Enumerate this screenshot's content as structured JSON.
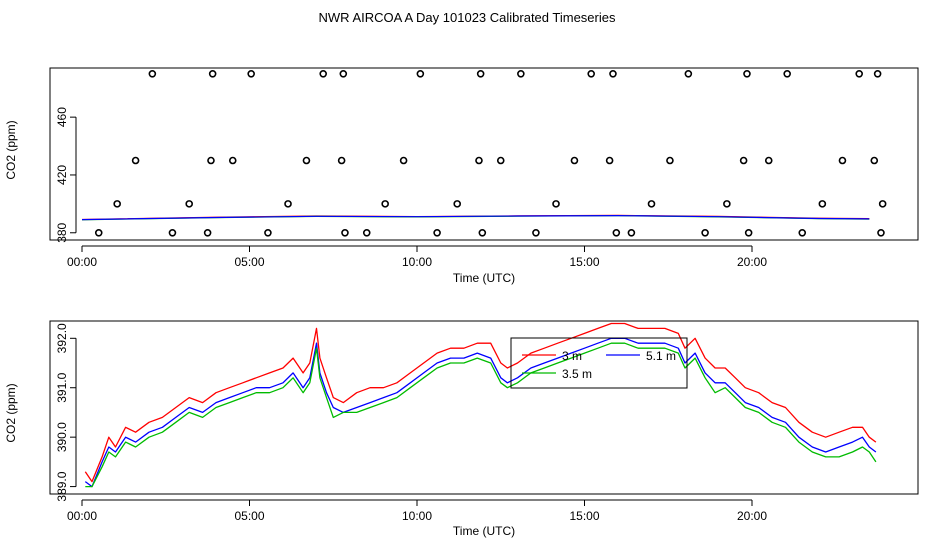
{
  "title": "NWR AIRCOA A  Day 101023  Calibrated Timeseries",
  "chart_data": [
    {
      "type": "scatter",
      "xlabel": "Time (UTC)",
      "ylabel": "CO2 (ppm)",
      "xlim": [
        0,
        24
      ],
      "ylim": [
        375,
        494
      ],
      "x_ticks": [
        0,
        5,
        10,
        15,
        20
      ],
      "x_tick_labels": [
        "00:00",
        "05:00",
        "10:00",
        "15:00",
        "20:00"
      ],
      "y_ticks": [
        380,
        420,
        460
      ],
      "y_tick_labels": [
        "380",
        "420",
        "460"
      ],
      "calibration_points": {
        "x": [
          0.5,
          1.05,
          1.6,
          2.1,
          2.7,
          3.2,
          3.75,
          3.85,
          3.9,
          4.5,
          5.05,
          5.55,
          6.15,
          6.7,
          7.2,
          7.75,
          7.8,
          7.85,
          8.5,
          9.05,
          9.6,
          10.1,
          10.6,
          11.2,
          11.85,
          11.9,
          11.95,
          12.5,
          13.1,
          13.55,
          14.15,
          14.7,
          15.2,
          15.75,
          15.85,
          15.95,
          16.4,
          17.0,
          17.55,
          18.1,
          18.6,
          19.25,
          19.75,
          19.85,
          19.9,
          20.5,
          21.05,
          21.5,
          22.1,
          22.7,
          23.2,
          23.65,
          23.75,
          23.85,
          23.9
        ],
        "y": [
          380,
          400,
          430,
          490,
          380,
          400,
          380,
          430,
          490,
          430,
          490,
          380,
          400,
          430,
          490,
          430,
          490,
          380,
          380,
          400,
          430,
          490,
          380,
          400,
          430,
          490,
          380,
          430,
          490,
          380,
          400,
          430,
          490,
          430,
          490,
          380,
          380,
          400,
          430,
          490,
          380,
          400,
          430,
          490,
          380,
          430,
          490,
          380,
          400,
          430,
          490,
          430,
          490,
          380,
          400
        ]
      },
      "series": [
        {
          "name": "3 m",
          "color": "#ff0000",
          "x": [
            0,
            4,
            7,
            10,
            13,
            16,
            19,
            22,
            23.5
          ],
          "values": [
            389.2,
            390.8,
            391.6,
            391.2,
            391.7,
            392.0,
            391.3,
            390.1,
            389.8
          ]
        },
        {
          "name": "3.5 m",
          "color": "#00bb00",
          "x": [
            0,
            4,
            7,
            10,
            13,
            16,
            19,
            22,
            23.5
          ],
          "values": [
            389.0,
            390.5,
            391.3,
            391.0,
            391.5,
            391.8,
            391.0,
            389.8,
            389.4
          ]
        },
        {
          "name": "5.1 m",
          "color": "#0000ff",
          "x": [
            0,
            4,
            7,
            10,
            13,
            16,
            19,
            22,
            23.5
          ],
          "values": [
            389.1,
            390.6,
            391.4,
            391.1,
            391.6,
            391.9,
            391.1,
            389.9,
            389.6
          ]
        }
      ]
    },
    {
      "type": "line",
      "xlabel": "Time (UTC)",
      "ylabel": "CO2 (ppm)",
      "xlim": [
        0,
        24
      ],
      "ylim": [
        388.85,
        392.35
      ],
      "x_ticks": [
        0,
        5,
        10,
        15,
        20
      ],
      "x_tick_labels": [
        "00:00",
        "05:00",
        "10:00",
        "15:00",
        "20:00"
      ],
      "y_ticks": [
        389.0,
        390.0,
        391.0,
        392.0
      ],
      "y_tick_labels": [
        "389.0",
        "390.0",
        "391.0",
        "392.0"
      ],
      "legend": {
        "position": "center",
        "entries": [
          "3 m",
          "5.1 m",
          "3.5 m"
        ]
      },
      "series": [
        {
          "name": "3 m",
          "color": "#ff0000",
          "x": [
            0.1,
            0.3,
            0.6,
            0.8,
            1.0,
            1.3,
            1.6,
            2.0,
            2.4,
            2.8,
            3.2,
            3.6,
            4.0,
            4.4,
            4.8,
            5.2,
            5.6,
            6.0,
            6.3,
            6.6,
            6.8,
            7.0,
            7.1,
            7.3,
            7.5,
            7.8,
            8.2,
            8.6,
            9.0,
            9.4,
            9.8,
            10.2,
            10.6,
            11.0,
            11.4,
            11.8,
            12.2,
            12.5,
            12.7,
            13.0,
            13.4,
            13.8,
            14.2,
            14.6,
            15.0,
            15.4,
            15.8,
            16.2,
            16.6,
            17.0,
            17.4,
            17.8,
            18.0,
            18.3,
            18.6,
            18.9,
            19.2,
            19.5,
            19.8,
            20.2,
            20.6,
            21.0,
            21.4,
            21.8,
            22.2,
            22.6,
            23.0,
            23.3,
            23.5,
            23.7
          ],
          "values": [
            389.3,
            389.1,
            389.6,
            390.0,
            389.8,
            390.2,
            390.1,
            390.3,
            390.4,
            390.6,
            390.8,
            390.7,
            390.9,
            391.0,
            391.1,
            391.2,
            391.3,
            391.4,
            391.6,
            391.3,
            391.5,
            392.2,
            391.6,
            391.2,
            390.8,
            390.7,
            390.9,
            391.0,
            391.0,
            391.1,
            391.3,
            391.5,
            391.7,
            391.8,
            391.8,
            391.9,
            391.9,
            391.5,
            391.4,
            391.5,
            391.7,
            391.8,
            391.9,
            392.0,
            392.1,
            392.2,
            392.3,
            392.3,
            392.2,
            392.2,
            392.2,
            392.1,
            391.8,
            392.0,
            391.6,
            391.4,
            391.4,
            391.2,
            391.0,
            390.9,
            390.7,
            390.6,
            390.3,
            390.1,
            390.0,
            390.1,
            390.2,
            390.2,
            390.0,
            389.9
          ]
        },
        {
          "name": "5.1 m",
          "color": "#0000ff",
          "x": [
            0.1,
            0.3,
            0.6,
            0.8,
            1.0,
            1.3,
            1.6,
            2.0,
            2.4,
            2.8,
            3.2,
            3.6,
            4.0,
            4.4,
            4.8,
            5.2,
            5.6,
            6.0,
            6.3,
            6.6,
            6.8,
            7.0,
            7.1,
            7.3,
            7.5,
            7.8,
            8.2,
            8.6,
            9.0,
            9.4,
            9.8,
            10.2,
            10.6,
            11.0,
            11.4,
            11.8,
            12.2,
            12.5,
            12.7,
            13.0,
            13.4,
            13.8,
            14.2,
            14.6,
            15.0,
            15.4,
            15.8,
            16.2,
            16.6,
            17.0,
            17.4,
            17.8,
            18.0,
            18.3,
            18.6,
            18.9,
            19.2,
            19.5,
            19.8,
            20.2,
            20.6,
            21.0,
            21.4,
            21.8,
            22.2,
            22.6,
            23.0,
            23.3,
            23.5,
            23.7
          ],
          "values": [
            389.1,
            389.0,
            389.5,
            389.8,
            389.7,
            390.0,
            389.9,
            390.1,
            390.2,
            390.4,
            390.6,
            390.5,
            390.7,
            390.8,
            390.9,
            391.0,
            391.0,
            391.1,
            391.3,
            391.0,
            391.2,
            391.9,
            391.3,
            390.9,
            390.6,
            390.5,
            390.6,
            390.7,
            390.8,
            390.9,
            391.1,
            391.3,
            391.5,
            391.6,
            391.6,
            391.7,
            391.6,
            391.2,
            391.1,
            391.2,
            391.4,
            391.5,
            391.6,
            391.7,
            391.8,
            391.9,
            392.0,
            392.0,
            391.9,
            391.9,
            391.9,
            391.8,
            391.5,
            391.7,
            391.3,
            391.1,
            391.1,
            390.9,
            390.7,
            390.6,
            390.4,
            390.3,
            390.0,
            389.8,
            389.7,
            389.8,
            389.9,
            390.0,
            389.8,
            389.7
          ]
        },
        {
          "name": "3.5 m",
          "color": "#00bb00",
          "x": [
            0.1,
            0.3,
            0.6,
            0.8,
            1.0,
            1.3,
            1.6,
            2.0,
            2.4,
            2.8,
            3.2,
            3.6,
            4.0,
            4.4,
            4.8,
            5.2,
            5.6,
            6.0,
            6.3,
            6.6,
            6.8,
            7.0,
            7.1,
            7.3,
            7.5,
            7.8,
            8.2,
            8.6,
            9.0,
            9.4,
            9.8,
            10.2,
            10.6,
            11.0,
            11.4,
            11.8,
            12.2,
            12.5,
            12.7,
            13.0,
            13.4,
            13.8,
            14.2,
            14.6,
            15.0,
            15.4,
            15.8,
            16.2,
            16.6,
            17.0,
            17.4,
            17.8,
            18.0,
            18.3,
            18.6,
            18.9,
            19.2,
            19.5,
            19.8,
            20.2,
            20.6,
            21.0,
            21.4,
            21.8,
            22.2,
            22.6,
            23.0,
            23.3,
            23.5,
            23.7
          ],
          "values": [
            389.0,
            389.0,
            389.4,
            389.7,
            389.6,
            389.9,
            389.8,
            390.0,
            390.1,
            390.3,
            390.5,
            390.4,
            390.6,
            390.7,
            390.8,
            390.9,
            390.9,
            391.0,
            391.2,
            390.9,
            391.1,
            391.8,
            391.2,
            390.8,
            390.4,
            390.5,
            390.5,
            390.6,
            390.7,
            390.8,
            391.0,
            391.2,
            391.4,
            391.5,
            391.5,
            391.6,
            391.5,
            391.1,
            391.0,
            391.1,
            391.3,
            391.4,
            391.5,
            391.6,
            391.7,
            391.8,
            391.9,
            391.9,
            391.8,
            391.8,
            391.8,
            391.7,
            391.4,
            391.6,
            391.2,
            390.9,
            391.0,
            390.8,
            390.6,
            390.5,
            390.3,
            390.2,
            389.9,
            389.7,
            389.6,
            389.6,
            389.7,
            389.8,
            389.7,
            389.5
          ]
        }
      ]
    }
  ]
}
